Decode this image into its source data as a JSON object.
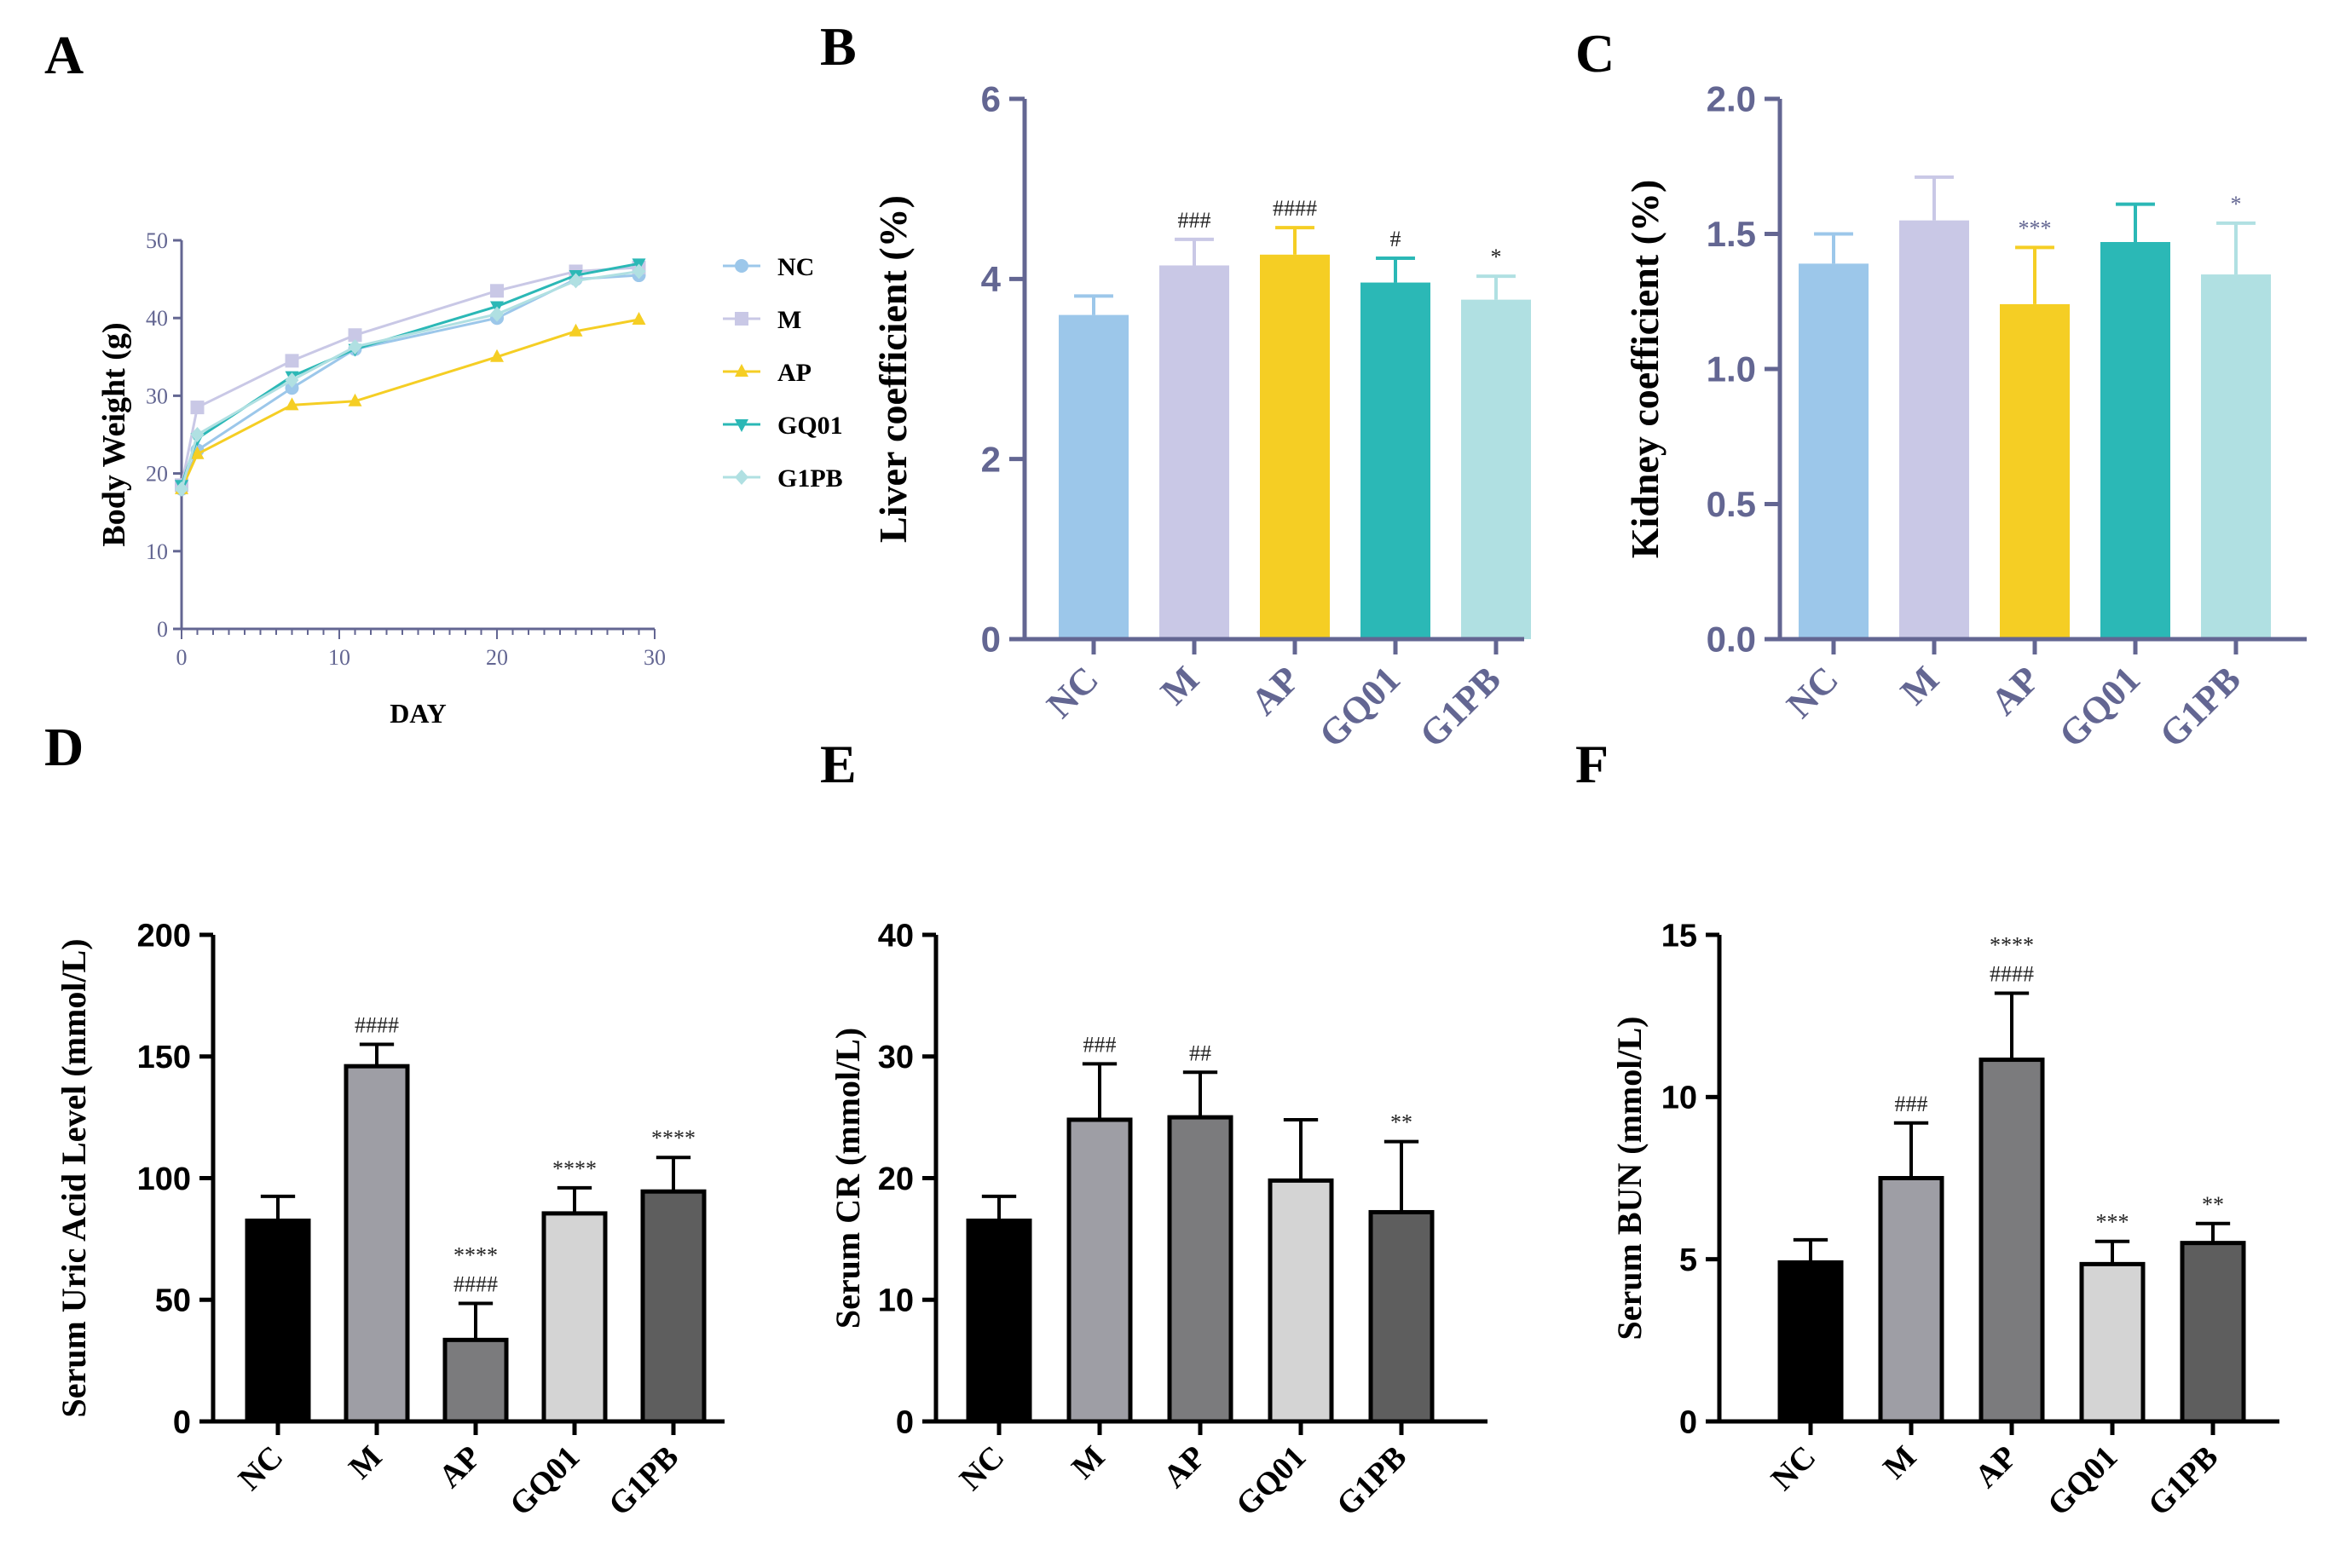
{
  "panel_labels": {
    "A": "A",
    "B": "B",
    "C": "C",
    "D": "D",
    "E": "E",
    "F": "F"
  },
  "colors": {
    "purple_axis": "#636692",
    "NC": "#9CC7EA",
    "M": "#C9C8E6",
    "AP": "#F5CE24",
    "GQ01": "#2BB8B6",
    "G1PB": "#B0E0E2",
    "gray_NC": "#000000",
    "gray_M": "#9E9EA5",
    "gray_AP": "#7B7B7D",
    "gray_GQ01": "#D4D4D4",
    "gray_G1PB": "#5E5E5E"
  },
  "chart_data": [
    {
      "panel": "A",
      "type": "line",
      "title": "",
      "xlabel": "DAY",
      "ylabel": "Body Weight (g)",
      "xlim": [
        0,
        30
      ],
      "ylim": [
        0,
        50
      ],
      "x_ticks": [
        "0",
        "10",
        "20",
        "30"
      ],
      "y_ticks": [
        "0",
        "10",
        "20",
        "30",
        "40",
        "50"
      ],
      "legend_position": "right",
      "series": [
        {
          "name": "NC",
          "marker": "circle",
          "x": [
            0,
            1,
            7,
            11,
            20,
            25,
            29
          ],
          "values": [
            18.0,
            23.0,
            31.0,
            36.0,
            40.0,
            45.0,
            45.5
          ]
        },
        {
          "name": "M",
          "marker": "square",
          "x": [
            0,
            1,
            7,
            11,
            20,
            25,
            29
          ],
          "values": [
            18.5,
            28.5,
            34.5,
            37.8,
            43.5,
            46.0,
            46.5
          ]
        },
        {
          "name": "AP",
          "marker": "triangle-up",
          "x": [
            0,
            1,
            7,
            11,
            20,
            25,
            29
          ],
          "values": [
            18.0,
            22.5,
            28.8,
            29.3,
            35.0,
            38.3,
            39.8
          ]
        },
        {
          "name": "GQ01",
          "marker": "triangle-down",
          "x": [
            0,
            1,
            7,
            11,
            20,
            25,
            29
          ],
          "values": [
            18.5,
            24.5,
            32.5,
            36.0,
            41.5,
            45.5,
            47.0
          ]
        },
        {
          "name": "G1PB",
          "marker": "diamond",
          "x": [
            0,
            1,
            7,
            11,
            20,
            25,
            29
          ],
          "values": [
            18.0,
            25.0,
            32.0,
            36.3,
            40.5,
            44.8,
            46.0
          ]
        }
      ]
    },
    {
      "panel": "B",
      "type": "bar",
      "title": "",
      "xlabel": "",
      "ylabel": "Liver coefficient (%)",
      "ylim": [
        0,
        6
      ],
      "y_ticks": [
        "0",
        "2",
        "4",
        "6"
      ],
      "categories": [
        "NC",
        "M",
        "AP",
        "GQ01",
        "G1PB"
      ],
      "values": [
        3.6,
        4.15,
        4.27,
        3.96,
        3.77
      ],
      "errors": [
        0.21,
        0.29,
        0.3,
        0.27,
        0.26
      ],
      "annotations": [
        [
          ""
        ],
        [
          "###"
        ],
        [
          "####"
        ],
        [
          "#"
        ],
        [
          "*"
        ]
      ]
    },
    {
      "panel": "C",
      "type": "bar",
      "title": "",
      "xlabel": "",
      "ylabel": "Kidney coefficient (%)",
      "ylim": [
        0,
        2.0
      ],
      "y_ticks": [
        "0.0",
        "0.5",
        "1.0",
        "1.5",
        "2.0"
      ],
      "categories": [
        "NC",
        "M",
        "AP",
        "GQ01",
        "G1PB"
      ],
      "values": [
        1.39,
        1.55,
        1.24,
        1.47,
        1.35
      ],
      "errors": [
        0.11,
        0.16,
        0.21,
        0.14,
        0.19
      ],
      "annotations": [
        [
          ""
        ],
        [
          ""
        ],
        [
          "***"
        ],
        [
          ""
        ],
        [
          "*"
        ]
      ]
    },
    {
      "panel": "D",
      "type": "bar",
      "title": "",
      "xlabel": "",
      "ylabel": "Serum Uric Acid Level (mmol/L)",
      "ylim": [
        0,
        200
      ],
      "y_ticks": [
        "0",
        "50",
        "100",
        "150",
        "200"
      ],
      "categories": [
        "NC",
        "M",
        "AP",
        "GQ01",
        "G1PB"
      ],
      "values": [
        82.5,
        146,
        33.5,
        85.5,
        94.5
      ],
      "errors": [
        10,
        9,
        15,
        10.5,
        14
      ],
      "annotations": [
        [
          ""
        ],
        [
          "####"
        ],
        [
          "****",
          "####"
        ],
        [
          "****"
        ],
        [
          "****"
        ]
      ]
    },
    {
      "panel": "E",
      "type": "bar",
      "title": "",
      "xlabel": "",
      "ylabel": "Serum CR (mmol/L)",
      "ylim": [
        0,
        40
      ],
      "y_ticks": [
        "0",
        "10",
        "20",
        "30",
        "40"
      ],
      "categories": [
        "NC",
        "M",
        "AP",
        "GQ01",
        "G1PB"
      ],
      "values": [
        16.5,
        24.8,
        25.0,
        19.8,
        17.2
      ],
      "errors": [
        2.0,
        4.6,
        3.7,
        5.0,
        5.8
      ],
      "annotations": [
        [
          ""
        ],
        [
          "###"
        ],
        [
          "##"
        ],
        [
          ""
        ],
        [
          "**"
        ]
      ]
    },
    {
      "panel": "F",
      "type": "bar",
      "title": "",
      "xlabel": "",
      "ylabel": "Serum BUN (mmol/L)",
      "ylim": [
        0,
        15
      ],
      "y_ticks": [
        "0",
        "5",
        "10",
        "15"
      ],
      "categories": [
        "NC",
        "M",
        "AP",
        "GQ01",
        "G1PB"
      ],
      "values": [
        4.9,
        7.5,
        11.15,
        4.85,
        5.5
      ],
      "errors": [
        0.7,
        1.7,
        2.05,
        0.7,
        0.6
      ],
      "annotations": [
        [
          ""
        ],
        [
          "###"
        ],
        [
          "****",
          "####"
        ],
        [
          "***"
        ],
        [
          "**"
        ]
      ]
    }
  ]
}
